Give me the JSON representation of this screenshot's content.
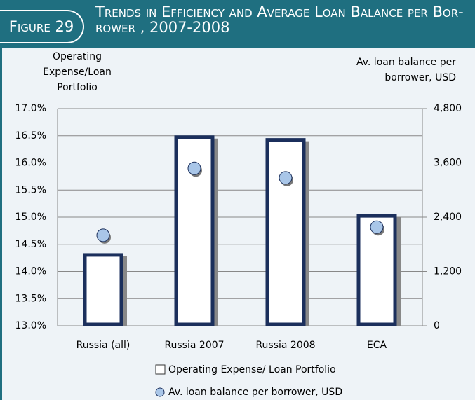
{
  "figure_label": "Figure 29",
  "chart_data": {
    "type": "bar_dot",
    "title": "Trends in Efficiency and Average Loan Balance per Bor-rower , 2007-2008",
    "ylabel": "Operating Expense/Loan Portfolio",
    "y2label": "Av. loan balance per borrower, USD",
    "categories": [
      "Russia (all)",
      "Russia 2007",
      "Russia 2008",
      "ECA"
    ],
    "series": [
      {
        "name": "Operating Expense/ Loan Portfolio",
        "color": "#ffffff",
        "edge": "#1b2f5c",
        "values": [
          14.33,
          16.5,
          16.45,
          15.05
        ]
      },
      {
        "name": "Av. loan balance per borrower, USD",
        "color": "#a9c6e8",
        "axis": "y2",
        "values": [
          2000,
          3480,
          3270,
          2180
        ]
      }
    ],
    "ylim": [
      13,
      17
    ],
    "yticks": [
      {
        "value": 13,
        "label": "13.0%"
      },
      {
        "value": 13.5,
        "label": "13.5%"
      },
      {
        "value": 14,
        "label": "14.0%"
      },
      {
        "value": 14.5,
        "label": "14.5%"
      },
      {
        "value": 15,
        "label": "15.0%"
      },
      {
        "value": 15.5,
        "label": "15.5%"
      },
      {
        "value": 16,
        "label": "16.0%"
      },
      {
        "value": 16.5,
        "label": "16.5%"
      },
      {
        "value": 17,
        "label": "17.0%"
      }
    ],
    "y2lim": [
      0,
      4800
    ],
    "y2ticks": [
      0,
      {
        "value": 1200,
        "label": "1,200"
      },
      {
        "value": 2400,
        "label": "2,400"
      },
      {
        "value": 3600,
        "label": "3,600"
      },
      {
        "value": 4800,
        "label": "4,800"
      }
    ],
    "grid": true
  }
}
